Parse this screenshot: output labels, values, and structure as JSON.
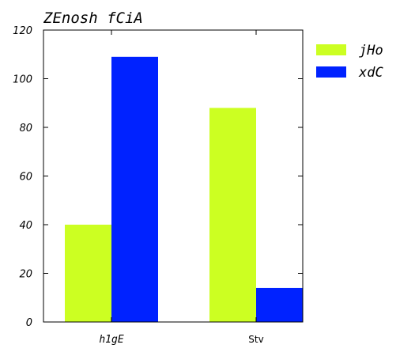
{
  "chart_data": {
    "type": "bar",
    "title": "ZEnosh fCiA",
    "categories": [
      "h1gE",
      "Stv"
    ],
    "series": [
      {
        "name": "jHo",
        "values": [
          40,
          88
        ],
        "color": "#ccff22"
      },
      {
        "name": "xdC",
        "values": [
          109,
          14
        ],
        "color": "#0022ff"
      }
    ],
    "ylim": [
      0,
      120
    ],
    "yticks": [
      0,
      20,
      40,
      60,
      80,
      100,
      120
    ],
    "grid": false,
    "legend_position": "right"
  }
}
